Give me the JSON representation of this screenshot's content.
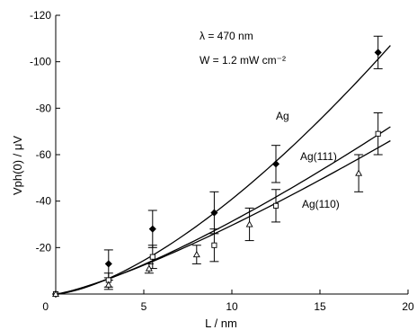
{
  "chart_data": {
    "type": "scatter",
    "xlabel": "L / nm",
    "ylabel": "Vph(0) / μV",
    "xlim": [
      0,
      20
    ],
    "ylim": [
      0,
      -120
    ],
    "xticks": [
      "0",
      "5",
      "10",
      "15",
      "20"
    ],
    "yticks": [
      "-20",
      "-40",
      "-60",
      "-80",
      "-100",
      "-120"
    ],
    "annotations": {
      "wavelength": "λ = 470 nm",
      "power": "W = 1.2 mW cm⁻²"
    },
    "grid": false,
    "series": [
      {
        "name": "Ag",
        "marker": "diamond-filled",
        "x": [
          0,
          3,
          5.5,
          9,
          12.5,
          18.3
        ],
        "y": [
          0,
          -13,
          -28,
          -35,
          -56,
          -104
        ],
        "err": [
          0,
          6,
          8,
          9,
          8,
          7
        ],
        "fit_x": [
          0,
          19
        ],
        "fit_y": [
          0,
          -107
        ],
        "fit_exp": 1.5
      },
      {
        "name": "Ag(111)",
        "marker": "square-open",
        "x": [
          0,
          3,
          5.5,
          9,
          12.5,
          18.3
        ],
        "y": [
          0,
          -6,
          -16,
          -21,
          -38,
          -69
        ],
        "err": [
          0,
          3,
          5,
          7,
          7,
          9
        ],
        "fit_x": [
          0,
          19
        ],
        "fit_y": [
          0,
          -72
        ],
        "fit_exp": 1.3
      },
      {
        "name": "Ag(110)",
        "marker": "triangle-open",
        "x": [
          0,
          3,
          5.3,
          8,
          11,
          17.2
        ],
        "y": [
          0,
          -4,
          -11,
          -17,
          -30,
          -52
        ],
        "err": [
          0,
          2,
          2,
          4,
          7,
          8
        ],
        "fit_x": [
          0,
          19
        ],
        "fit_y": [
          0,
          -66
        ],
        "fit_exp": 1.25
      }
    ]
  }
}
